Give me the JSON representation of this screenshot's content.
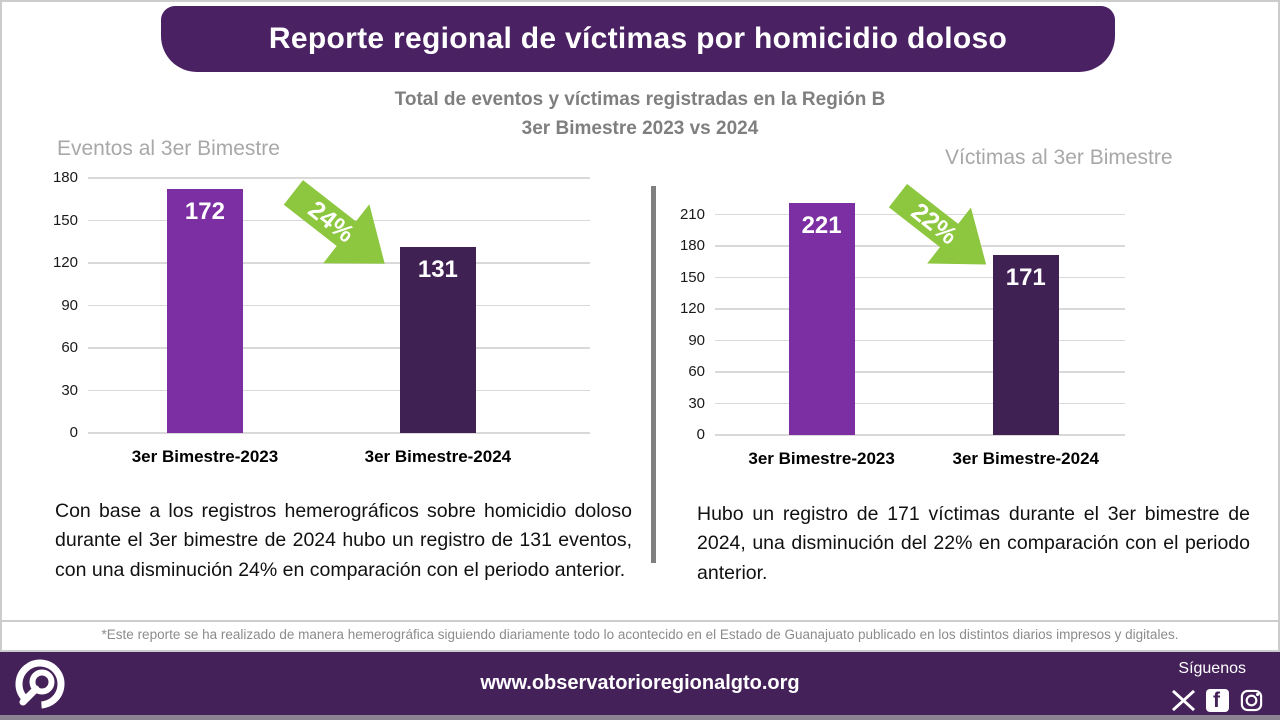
{
  "header": {
    "title": "Reporte regional de víctimas por homicidio doloso"
  },
  "subtitle": {
    "line1": "Total de eventos y víctimas registradas en la Región B",
    "line2": "3er Bimestre 2023 vs 2024"
  },
  "chart_data": [
    {
      "type": "bar",
      "title": "Eventos al 3er Bimestre",
      "categories": [
        "3er Bimestre-2023",
        "3er Bimestre-2024"
      ],
      "values": [
        172,
        131
      ],
      "xlabel": "",
      "ylabel": "",
      "ylim": [
        0,
        180
      ],
      "yticks": [
        0,
        30,
        60,
        90,
        120,
        150,
        180
      ],
      "bar_colors": [
        "#7B2FA2",
        "#3F2253"
      ],
      "grid": true,
      "legend": "none",
      "annotation": {
        "label": "24%",
        "type": "decrease-arrow",
        "color": "#8DC63F"
      }
    },
    {
      "type": "bar",
      "title": "Víctimas al 3er Bimestre",
      "categories": [
        "3er Bimestre-2023",
        "3er Bimestre-2024"
      ],
      "values": [
        221,
        171
      ],
      "xlabel": "",
      "ylabel": "",
      "ylim": [
        0,
        221
      ],
      "yticks": [
        0,
        30,
        60,
        90,
        120,
        150,
        180,
        210
      ],
      "bar_colors": [
        "#7B2FA2",
        "#3F2253"
      ],
      "grid": true,
      "legend": "none",
      "annotation": {
        "label": "22%",
        "type": "decrease-arrow",
        "color": "#8DC63F"
      }
    }
  ],
  "analysis": {
    "events": "Con base a los registros hemerográficos sobre homicidio doloso durante el 3er bimestre de 2024 hubo un registro de 131 eventos, con una disminución 24% en comparación con el periodo anterior.",
    "victims": "Hubo un registro de 171 víctimas durante el 3er bimestre de 2024, una disminución del 22% en comparación con el periodo anterior."
  },
  "footnote": "*Este reporte se ha realizado de manera hemerográfica siguiendo diariamente todo lo acontecido en el Estado de Guanajuato publicado en los distintos diarios impresos y digitales.",
  "footer": {
    "url": "www.observatorioregionalgto.org",
    "follow_label": "Síguenos",
    "logo": "observatorio-regional-logo",
    "icons": [
      "x-icon",
      "facebook-icon",
      "instagram-icon"
    ]
  },
  "colors": {
    "header_purple": "#4A2163",
    "footer_purple": "#45215A",
    "bar_2023": "#7B2FA2",
    "bar_2024": "#3F2253",
    "arrow_green": "#8DC63F",
    "gridline": "#D9D9D9",
    "chart_title_gray": "#A8A8A8",
    "subtitle_gray": "#7F7F7F"
  }
}
